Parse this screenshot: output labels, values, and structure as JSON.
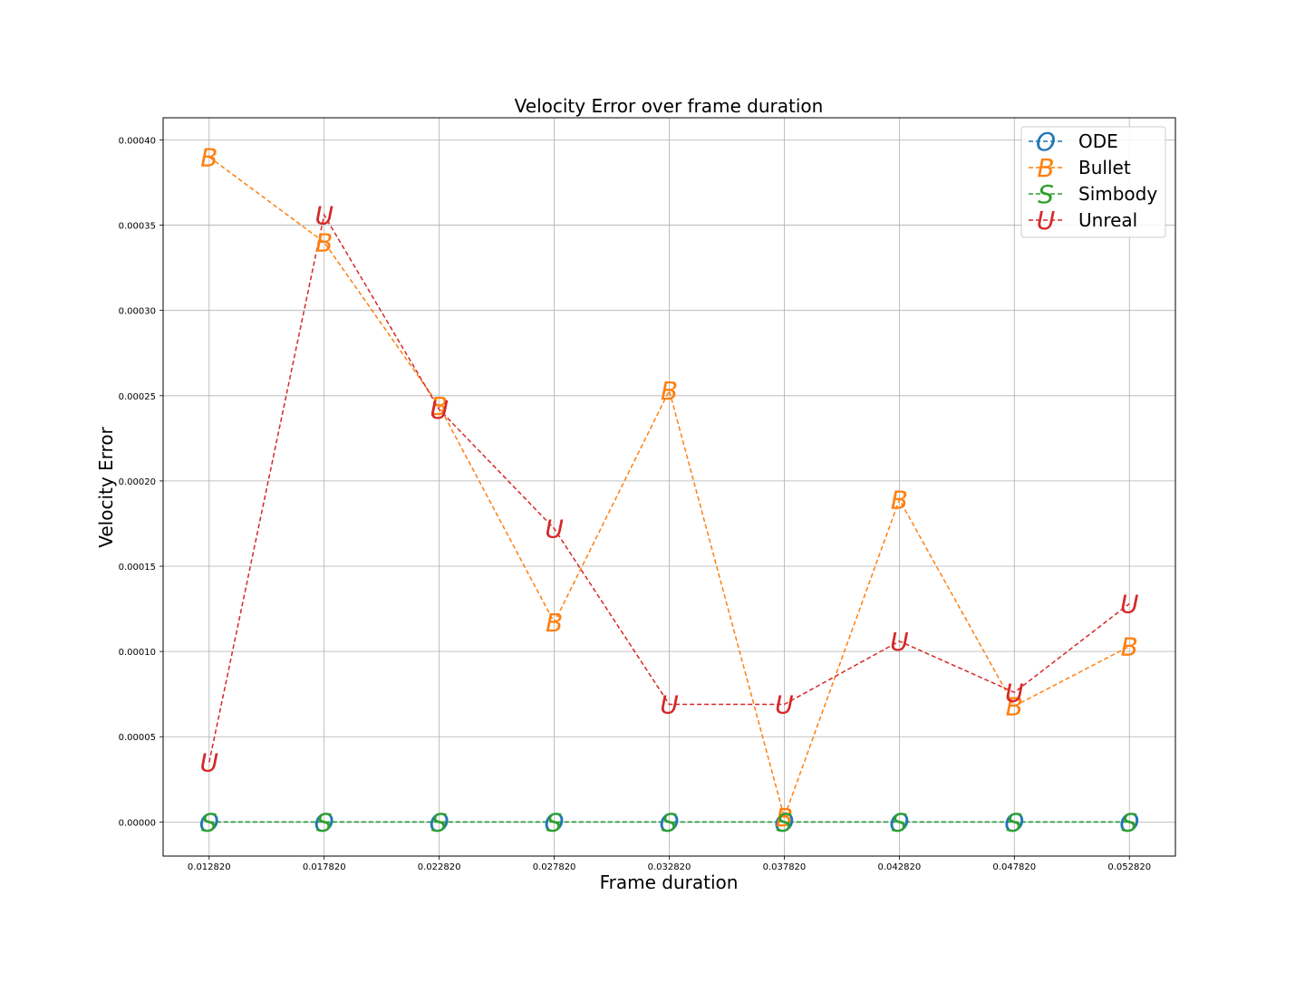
{
  "chart_data": {
    "type": "line",
    "title": "Velocity Error over frame duration",
    "xlabel": "Frame duration",
    "ylabel": "Velocity Error",
    "x": [
      0.01282,
      0.01782,
      0.02282,
      0.02782,
      0.03282,
      0.03782,
      0.04282,
      0.04782,
      0.05282
    ],
    "x_tick_labels": [
      "0.012820",
      "0.017820",
      "0.022820",
      "0.027820",
      "0.032820",
      "0.037820",
      "0.042820",
      "0.047820",
      "0.052820"
    ],
    "y_ticks": [
      0.0,
      5e-05,
      0.0001,
      0.00015,
      0.0002,
      0.00025,
      0.0003,
      0.00035,
      0.0004
    ],
    "y_tick_labels": [
      "0.00000",
      "0.00005",
      "0.00010",
      "0.00015",
      "0.00020",
      "0.00025",
      "0.00030",
      "0.00035",
      "0.00040"
    ],
    "xlim": [
      0.01082,
      0.05482
    ],
    "ylim": [
      -2e-05,
      0.000413
    ],
    "grid": true,
    "legend_position": "top-right",
    "line_style": "dashed",
    "series": [
      {
        "name": "ODE",
        "marker": "O",
        "color": "#1f77b4",
        "values": [
          0,
          0,
          0,
          0,
          0,
          0,
          0,
          0,
          0
        ]
      },
      {
        "name": "Bullet",
        "marker": "B",
        "color": "#ff7f0e",
        "values": [
          0.00039,
          0.00034,
          0.000244,
          0.000117,
          0.000253,
          2.8e-06,
          0.000189,
          6.8e-05,
          0.000103
        ]
      },
      {
        "name": "Simbody",
        "marker": "S",
        "color": "#2ca02c",
        "values": [
          0,
          0,
          0,
          0,
          0,
          0,
          0,
          0,
          0
        ]
      },
      {
        "name": "Unreal",
        "marker": "U",
        "color": "#d62728",
        "values": [
          3.5e-05,
          0.000356,
          0.000242,
          0.000172,
          6.9e-05,
          6.9e-05,
          0.000106,
          7.6e-05,
          0.000128
        ]
      }
    ]
  }
}
